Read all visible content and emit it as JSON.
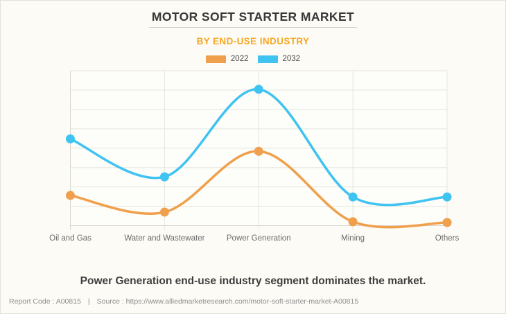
{
  "header": {
    "title": "MOTOR SOFT STARTER MARKET",
    "subtitle": "BY END-USE INDUSTRY"
  },
  "chart_data": {
    "type": "line",
    "title": "Motor Soft Starter Market by End-Use Industry",
    "categories": [
      "Oil and Gas",
      "Water and Wastewater",
      "Power Generation",
      "Mining",
      "Others"
    ],
    "series": [
      {
        "name": "2022",
        "color": "#F0A04C",
        "values": [
          19.5,
          8.7,
          48,
          2.5,
          2
        ]
      },
      {
        "name": "2032",
        "color": "#3FC3F1",
        "values": [
          56,
          31.5,
          88,
          18.5,
          18.5
        ]
      }
    ],
    "xlabel": "",
    "ylabel": "",
    "ylim": [
      0,
      100
    ],
    "grid": true,
    "legend_position": "top",
    "curve": "smooth",
    "y_axis_labels_visible": false
  },
  "statement": "Power Generation end-use industry segment dominates the market.",
  "footer": {
    "report_code_label": "Report Code : A00815",
    "separator": "|",
    "source_label": "Source : https://www.alliedmarketresearch.com/motor-soft-starter-market-A00815"
  },
  "colors": {
    "accent_orange": "#F7A724",
    "series_2022": "#F0A04C",
    "series_2032": "#3FC3F1",
    "gridline": "#e6e5df",
    "axis": "#d7d6d0"
  }
}
